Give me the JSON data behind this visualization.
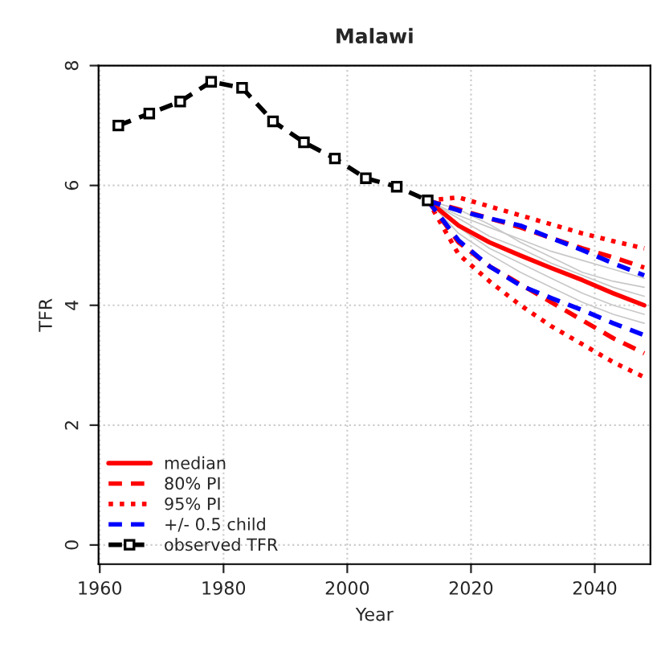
{
  "chart_data": {
    "type": "line",
    "title": "Malawi",
    "xlabel": "Year",
    "ylabel": "TFR",
    "xlim": [
      1959.8,
      2049
    ],
    "ylim": [
      -0.32,
      8
    ],
    "xticks": [
      1960,
      1980,
      2000,
      2020,
      2040
    ],
    "yticks": [
      0,
      2,
      4,
      6,
      8
    ],
    "grid": true,
    "legend": "bottom left",
    "series": [
      {
        "color": "#c8c8c8",
        "line_style": "solid",
        "marker": "none",
        "x": [
          2013,
          2018,
          2023,
          2028,
          2033,
          2038,
          2043,
          2048
        ],
        "values": [
          5.75,
          5.5,
          5.3,
          5.1,
          4.9,
          4.75,
          4.6,
          4.45
        ]
      },
      {
        "color": "#c8c8c8",
        "line_style": "solid",
        "marker": "none",
        "x": [
          2013,
          2018,
          2023,
          2028,
          2033,
          2038,
          2043,
          2048
        ],
        "values": [
          5.75,
          5.2,
          4.85,
          4.55,
          4.3,
          4.05,
          3.85,
          3.7
        ]
      },
      {
        "color": "#c8c8c8",
        "line_style": "solid",
        "marker": "none",
        "x": [
          2013,
          2018,
          2023,
          2028,
          2033,
          2038,
          2043,
          2048
        ],
        "values": [
          5.75,
          5.45,
          5.15,
          4.95,
          4.7,
          4.5,
          4.3,
          4.15
        ]
      },
      {
        "color": "#c8c8c8",
        "line_style": "solid",
        "marker": "none",
        "x": [
          2013,
          2018,
          2023,
          2028,
          2033,
          2038,
          2043,
          2048
        ],
        "values": [
          5.75,
          5.3,
          4.95,
          4.7,
          4.45,
          4.2,
          4.0,
          3.85
        ]
      },
      {
        "color": "#c8c8c8",
        "line_style": "solid",
        "marker": "none",
        "x": [
          2013,
          2018,
          2023,
          2028,
          2033,
          2038,
          2043,
          2048
        ],
        "values": [
          5.75,
          5.6,
          5.35,
          5.05,
          4.8,
          4.55,
          4.4,
          4.3
        ]
      },
      {
        "name": "median",
        "color": "#ff0000",
        "line_style": "solid",
        "marker": "none",
        "x": [
          2013,
          2018,
          2023,
          2028,
          2033,
          2038,
          2043,
          2048
        ],
        "values": [
          5.75,
          5.33,
          5.05,
          4.83,
          4.62,
          4.42,
          4.2,
          4.0
        ]
      },
      {
        "name": "80% PI",
        "color": "#ff0000",
        "line_style": "dashed",
        "marker": "none",
        "x": [
          2013,
          2018,
          2023,
          2028,
          2033,
          2038,
          2043,
          2048
        ],
        "values": [
          5.75,
          5.6,
          5.45,
          5.3,
          5.12,
          4.95,
          4.8,
          4.63
        ]
      },
      {
        "color": "#ff0000",
        "line_style": "dashed",
        "marker": "none",
        "x": [
          2013,
          2018,
          2023,
          2028,
          2033,
          2038,
          2043,
          2048
        ],
        "values": [
          5.75,
          5.05,
          4.65,
          4.35,
          4.05,
          3.75,
          3.45,
          3.2
        ]
      },
      {
        "name": "95% PI",
        "color": "#ff0000",
        "line_style": "dotted",
        "marker": "none",
        "x": [
          2013,
          2018,
          2023,
          2028,
          2033,
          2038,
          2043,
          2048
        ],
        "values": [
          5.75,
          5.8,
          5.65,
          5.5,
          5.35,
          5.2,
          5.07,
          4.95
        ]
      },
      {
        "color": "#ff0000",
        "line_style": "dotted",
        "marker": "none",
        "x": [
          2013,
          2018,
          2023,
          2028,
          2033,
          2038,
          2043,
          2048
        ],
        "values": [
          5.75,
          4.85,
          4.4,
          4.0,
          3.65,
          3.35,
          3.05,
          2.8
        ]
      },
      {
        "name": "+/- 0.5 child",
        "color": "#0000ff",
        "line_style": "dashed",
        "marker": "none",
        "x": [
          2013,
          2018,
          2023,
          2028,
          2033,
          2038,
          2043,
          2048
        ],
        "values": [
          5.75,
          5.58,
          5.45,
          5.33,
          5.12,
          4.92,
          4.7,
          4.5
        ]
      },
      {
        "color": "#0000ff",
        "line_style": "dashed",
        "marker": "none",
        "x": [
          2013,
          2018,
          2023,
          2028,
          2033,
          2038,
          2043,
          2048
        ],
        "values": [
          5.75,
          5.08,
          4.65,
          4.33,
          4.12,
          3.92,
          3.7,
          3.5
        ]
      },
      {
        "name": "observed TFR",
        "color": "#000000",
        "line_style": "dashed",
        "marker": "square",
        "x": [
          1963,
          1968,
          1973,
          1978,
          1983,
          1988,
          1993,
          1998,
          2003,
          2008,
          2013
        ],
        "values": [
          7.0,
          7.2,
          7.4,
          7.73,
          7.63,
          7.07,
          6.72,
          6.45,
          6.12,
          5.98,
          5.75
        ]
      }
    ]
  }
}
